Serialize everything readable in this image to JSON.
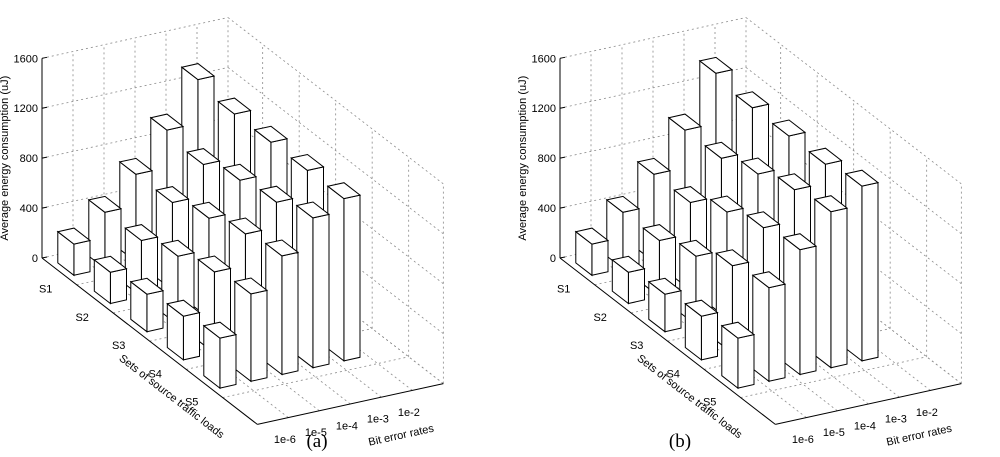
{
  "chart_data": [
    {
      "type": "bar3d",
      "caption": "(a)",
      "zlabel": "Average energy consumption (uJ)",
      "xlabel": "Bit error rates",
      "ylabel": "Sets of source traffic loads",
      "x_categories": [
        "1e-6",
        "1e-5",
        "1e-4",
        "1e-3",
        "1e-2"
      ],
      "y_categories": [
        "S1",
        "S2",
        "S3",
        "S4",
        "S5"
      ],
      "zlim": [
        0,
        1600
      ],
      "zticks": [
        "0",
        "400",
        "800",
        "1200",
        "1600"
      ],
      "grid": true,
      "values": [
        [
          250,
          450,
          700,
          1000,
          1350
        ],
        [
          250,
          450,
          700,
          950,
          1300
        ],
        [
          300,
          550,
          800,
          1050,
          1300
        ],
        [
          350,
          650,
          900,
          1100,
          1300
        ],
        [
          400,
          700,
          950,
          1200,
          1300
        ]
      ]
    },
    {
      "type": "bar3d",
      "caption": "(b)",
      "zlabel": "Average energy consumption (uJ)",
      "xlabel": "Bit error rates",
      "ylabel": "Sets of source traffic loads",
      "x_categories": [
        "1e-6",
        "1e-5",
        "1e-4",
        "1e-3",
        "1e-2"
      ],
      "y_categories": [
        "S1",
        "S2",
        "S3",
        "S4",
        "S5"
      ],
      "zlim": [
        0,
        1600
      ],
      "zticks": [
        "0",
        "400",
        "800",
        "1200",
        "1600"
      ],
      "grid": true,
      "values": [
        [
          250,
          450,
          700,
          1000,
          1400
        ],
        [
          250,
          450,
          700,
          1000,
          1350
        ],
        [
          300,
          550,
          850,
          1100,
          1350
        ],
        [
          350,
          700,
          950,
          1200,
          1350
        ],
        [
          400,
          750,
          1000,
          1250,
          1400
        ]
      ]
    }
  ]
}
